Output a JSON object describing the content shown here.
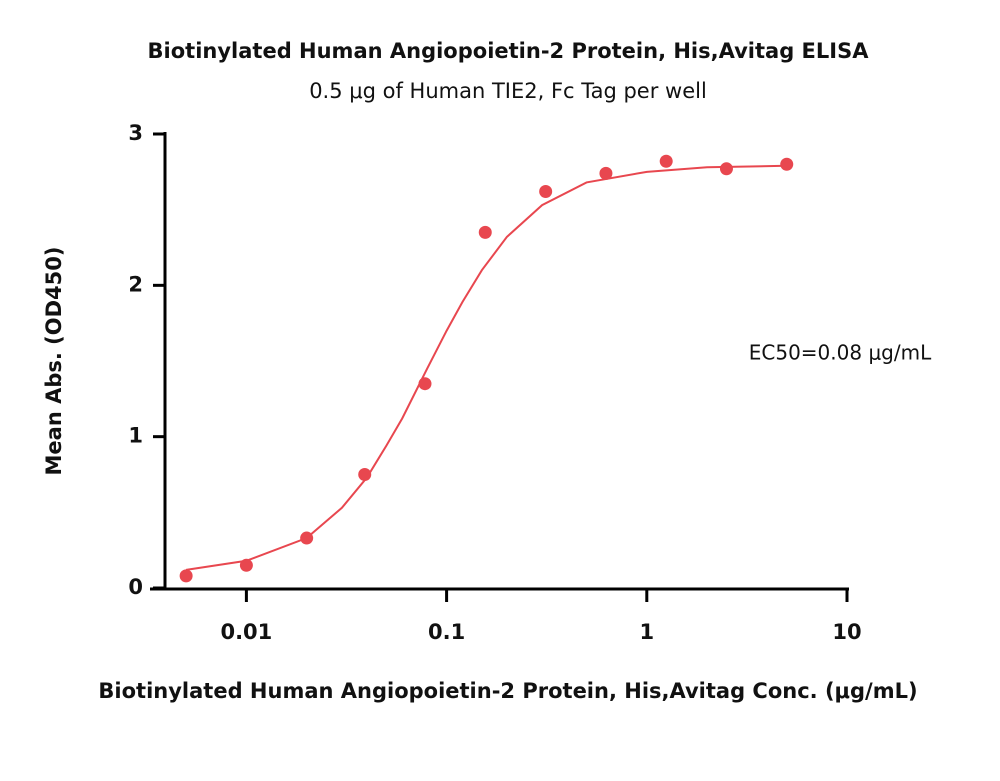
{
  "chart_data": {
    "type": "scatter",
    "title": "Biotinylated Human Angiopoietin-2 Protein, His,Avitag ELISA",
    "subtitle": "0.5 μg of Human TIE2, Fc Tag per well",
    "x_label": "Biotinylated Human Angiopoietin-2 Protein, His,Avitag Conc. (μg/mL)",
    "y_label": "Mean Abs. (OD450)",
    "annotation": "EC50=0.08 μg/mL",
    "x": [
      0.005,
      0.01,
      0.02,
      0.039,
      0.078,
      0.156,
      0.3125,
      0.625,
      1.25,
      2.5,
      5
    ],
    "values": [
      0.08,
      0.15,
      0.33,
      0.75,
      1.35,
      2.35,
      2.62,
      2.74,
      2.82,
      2.77,
      2.8
    ],
    "color": "#e8474f",
    "fit": {
      "x": [
        0.005,
        0.01,
        0.02,
        0.03,
        0.04,
        0.05,
        0.06,
        0.08,
        0.1,
        0.12,
        0.15,
        0.2,
        0.3,
        0.5,
        1,
        2,
        5
      ],
      "values": [
        0.12,
        0.18,
        0.33,
        0.53,
        0.73,
        0.94,
        1.12,
        1.45,
        1.7,
        1.89,
        2.1,
        2.32,
        2.53,
        2.68,
        2.75,
        2.78,
        2.79
      ],
      "color": "#e8474f"
    },
    "x_log": true,
    "xlim": [
      0.0033,
      10
    ],
    "xticks": [
      0.01,
      0.1,
      1,
      10
    ],
    "ylim": [
      0,
      3
    ],
    "yticks": [
      0,
      1,
      2,
      3
    ],
    "grid": false
  }
}
